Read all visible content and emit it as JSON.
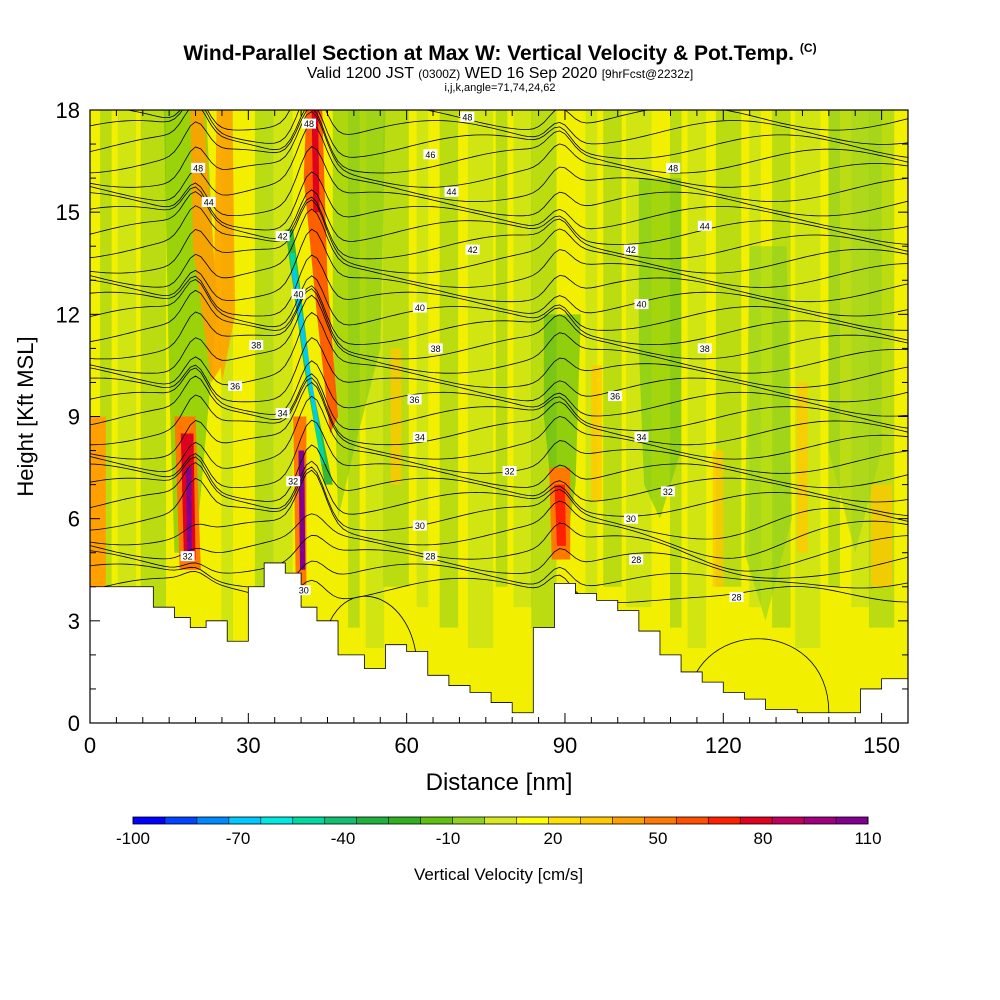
{
  "chart_data": {
    "type": "heatmap",
    "title": "Wind-Parallel Section at Max W: Vertical Velocity & Pot.Temp.",
    "title_mark": "(C)",
    "subtitle_prefix": "Valid 1200 JST",
    "subtitle_utc": "(0300Z)",
    "subtitle_date": "WED 16 Sep 2020",
    "subtitle_fcst": "[9hrFcst@2232z]",
    "subtitle2": "i,j,k,angle=71,74,24,62",
    "xlabel": "Distance [nm]",
    "ylabel": "Height [Kft MSL]",
    "xlim": [
      0,
      155
    ],
    "ylim": [
      0,
      18
    ],
    "xticks": [
      0,
      30,
      60,
      90,
      120,
      150
    ],
    "xtick_labels": [
      "0",
      "30",
      "60",
      "90",
      "120",
      "150"
    ],
    "yticks": [
      0,
      3,
      6,
      9,
      12,
      15,
      18
    ],
    "ytick_labels": [
      "0",
      "3",
      "6",
      "9",
      "12",
      "15",
      "18"
    ],
    "colorbar": {
      "label": "Vertical Velocity [cm/s]",
      "tick_values": [
        -100,
        -70,
        -40,
        -10,
        20,
        50,
        80,
        110
      ],
      "tick_labels": [
        "-100",
        "-70",
        "-40",
        "-10",
        "20",
        "50",
        "80",
        "110"
      ],
      "colors": [
        "#0000ff",
        "#0044ff",
        "#0088ff",
        "#00c8ff",
        "#00e8e0",
        "#00d8a0",
        "#10c070",
        "#20b040",
        "#30b020",
        "#60c010",
        "#90d020",
        "#d8e820",
        "#ffff00",
        "#ffe000",
        "#ffc800",
        "#ffa000",
        "#ff7800",
        "#ff5000",
        "#ff2000",
        "#e00020",
        "#c00060",
        "#a00080",
        "#800090"
      ]
    },
    "terrain_profile": [
      [
        0,
        4.0
      ],
      [
        8,
        4.0
      ],
      [
        12,
        3.4
      ],
      [
        16,
        3.1
      ],
      [
        19,
        2.8
      ],
      [
        22,
        3.0
      ],
      [
        26,
        2.4
      ],
      [
        30,
        4.0
      ],
      [
        33,
        4.7
      ],
      [
        37,
        4.4
      ],
      [
        40,
        3.4
      ],
      [
        43,
        3.0
      ],
      [
        47,
        2.0
      ],
      [
        52,
        1.6
      ],
      [
        56,
        2.3
      ],
      [
        60,
        2.1
      ],
      [
        64,
        1.4
      ],
      [
        68,
        1.1
      ],
      [
        72,
        0.9
      ],
      [
        76,
        0.6
      ],
      [
        80,
        0.3
      ],
      [
        84,
        2.8
      ],
      [
        88,
        4.1
      ],
      [
        92,
        3.8
      ],
      [
        96,
        3.6
      ],
      [
        100,
        3.3
      ],
      [
        104,
        2.7
      ],
      [
        108,
        2.0
      ],
      [
        112,
        1.5
      ],
      [
        116,
        1.2
      ],
      [
        120,
        0.9
      ],
      [
        124,
        0.7
      ],
      [
        128,
        0.4
      ],
      [
        134,
        0.3
      ],
      [
        140,
        0.3
      ],
      [
        146,
        1.0
      ],
      [
        150,
        1.3
      ],
      [
        155,
        1.0
      ]
    ],
    "theta_contour_labels": [
      {
        "text": "48",
        "x": 20.5,
        "y": 16.3
      },
      {
        "text": "44",
        "x": 22.5,
        "y": 15.3
      },
      {
        "text": "42",
        "x": 36.5,
        "y": 14.3
      },
      {
        "text": "40",
        "x": 39.5,
        "y": 12.6
      },
      {
        "text": "38",
        "x": 31.5,
        "y": 11.1
      },
      {
        "text": "36",
        "x": 27.5,
        "y": 9.9
      },
      {
        "text": "34",
        "x": 36.5,
        "y": 9.1
      },
      {
        "text": "32",
        "x": 18.5,
        "y": 4.9
      },
      {
        "text": "32",
        "x": 38.5,
        "y": 7.1
      },
      {
        "text": "30",
        "x": 40.5,
        "y": 3.9
      },
      {
        "text": "48",
        "x": 41.5,
        "y": 17.6
      },
      {
        "text": "48",
        "x": 71.5,
        "y": 17.8
      },
      {
        "text": "46",
        "x": 64.5,
        "y": 16.7
      },
      {
        "text": "44",
        "x": 68.5,
        "y": 15.6
      },
      {
        "text": "42",
        "x": 72.5,
        "y": 13.9
      },
      {
        "text": "40",
        "x": 62.5,
        "y": 12.2
      },
      {
        "text": "38",
        "x": 65.5,
        "y": 11.0
      },
      {
        "text": "36",
        "x": 61.5,
        "y": 9.5
      },
      {
        "text": "34",
        "x": 62.5,
        "y": 8.4
      },
      {
        "text": "32",
        "x": 79.5,
        "y": 7.4
      },
      {
        "text": "30",
        "x": 62.5,
        "y": 5.8
      },
      {
        "text": "28",
        "x": 64.5,
        "y": 4.9
      },
      {
        "text": "48",
        "x": 110.5,
        "y": 16.3
      },
      {
        "text": "44",
        "x": 116.5,
        "y": 14.6
      },
      {
        "text": "42",
        "x": 102.5,
        "y": 13.9
      },
      {
        "text": "40",
        "x": 104.5,
        "y": 12.3
      },
      {
        "text": "38",
        "x": 116.5,
        "y": 11.0
      },
      {
        "text": "36",
        "x": 99.5,
        "y": 9.6
      },
      {
        "text": "34",
        "x": 104.5,
        "y": 8.4
      },
      {
        "text": "32",
        "x": 109.5,
        "y": 6.8
      },
      {
        "text": "30",
        "x": 102.5,
        "y": 6.0
      },
      {
        "text": "28",
        "x": 103.5,
        "y": 4.8
      },
      {
        "text": "28",
        "x": 122.5,
        "y": 3.7
      }
    ]
  }
}
